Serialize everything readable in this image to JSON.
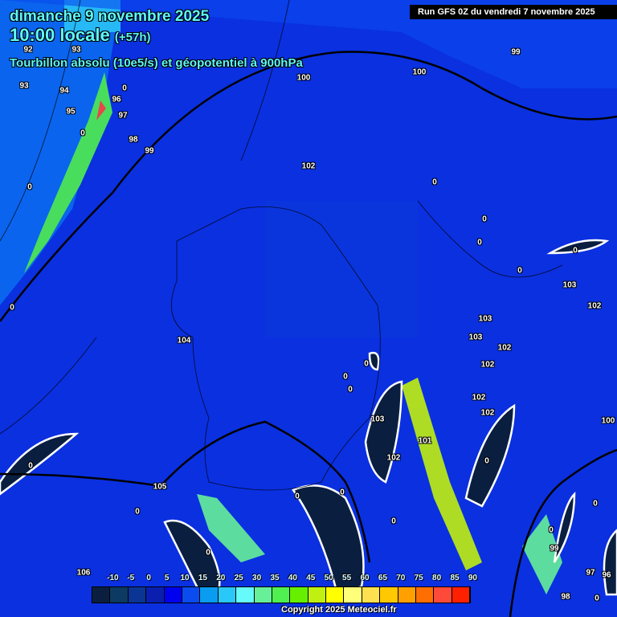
{
  "header": {
    "date": "dimanche 9 novembre 2025",
    "time": "10:00 locale",
    "lead": "(+57h)",
    "field": "Tourbillon absolu (10e5/s) et géopotentiel à 900hPa",
    "run": "Run GFS 0Z du vendredi 7 novembre 2025"
  },
  "geopotential_labels": [
    "92",
    "93",
    "93",
    "94",
    "95",
    "96",
    "97",
    "98",
    "99",
    "100",
    "100",
    "99",
    "102",
    "104",
    "103",
    "102",
    "103",
    "103",
    "102",
    "102",
    "102",
    "102",
    "103",
    "101",
    "102",
    "105",
    "106",
    "100",
    "99",
    "97",
    "96",
    "98"
  ],
  "vorticity_labels": [
    "0",
    "0",
    "0",
    "0",
    "0",
    "0",
    "0",
    "0",
    "0",
    "0",
    "0",
    "0",
    "0",
    "0",
    "0",
    "0",
    "0",
    "0",
    "0",
    "0",
    "0",
    "0"
  ],
  "legend": {
    "ticks": [
      "-10",
      "-5",
      "0",
      "5",
      "10",
      "15",
      "20",
      "25",
      "30",
      "35",
      "40",
      "45",
      "50",
      "55",
      "60",
      "65",
      "70",
      "75",
      "80",
      "85",
      "90"
    ],
    "colors": [
      "#0a1f40",
      "#0c3a62",
      "#0a3594",
      "#0a1fb0",
      "#0000f0",
      "#0a4cf0",
      "#0a9cf0",
      "#2ac8f8",
      "#66fafa",
      "#66f098",
      "#50f050",
      "#66f000",
      "#c0f010",
      "#ffff00",
      "#ffff7a",
      "#ffe050",
      "#ffc800",
      "#ffa000",
      "#ff6e00",
      "#ff4a3a",
      "#ff2000"
    ]
  },
  "copyright": "Copyright 2025 Meteociel.fr"
}
